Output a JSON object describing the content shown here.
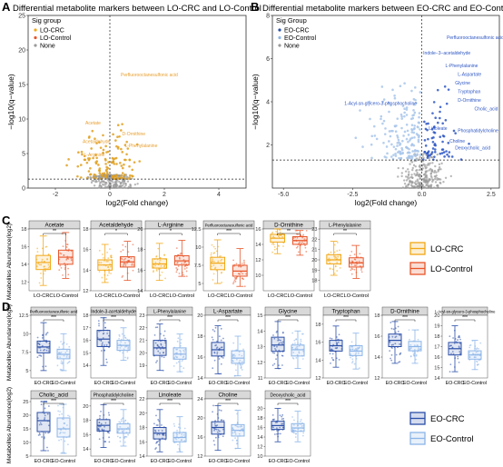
{
  "panel_labels": {
    "A": "A",
    "B": "B",
    "C": "C",
    "D": "D"
  },
  "colors": {
    "lo_crc": "#f2a817",
    "lo_control": "#e8562a",
    "eo_crc": "#2b4fa8",
    "eo_control": "#8cb5e8",
    "none": "#9a9a9a",
    "lo_sig_point": "#e0a020",
    "eo_sig_point": "#2d56c4",
    "eo_light_point": "#a8c6ea",
    "strip_bg": "#d9d9d9"
  },
  "chart_data": [
    {
      "type": "scatter",
      "id": "A",
      "title": "Differential metabolite markers between LO-CRC and LO-Control",
      "xlabel": "log2(Fold change)",
      "ylabel": "−log10(q−value)",
      "xlim": [
        -3,
        5
      ],
      "ylim": [
        0,
        25
      ],
      "xticks": [
        -2,
        0,
        2,
        4
      ],
      "yticks": [
        0,
        5,
        10,
        15,
        20,
        25
      ],
      "threshold_y": 1.3,
      "threshold_x": 0,
      "legend": {
        "title": "Sig group",
        "items": [
          "LO-CRC",
          "LO-Control",
          "None"
        ]
      },
      "labels": [
        {
          "text": "Perfluorooctanesulfonic acid",
          "x": 0.4,
          "y": 16.2
        },
        {
          "text": "Acetate",
          "x": -0.9,
          "y": 9.2
        },
        {
          "text": "D-Ornithine",
          "x": 0.45,
          "y": 7.6
        },
        {
          "text": "Acetaldehyde",
          "x": -1.0,
          "y": 6.5
        },
        {
          "text": "L-Phenylalanine",
          "x": 0.55,
          "y": 5.9
        },
        {
          "text": "L-Arginine",
          "x": -0.95,
          "y": 4.6
        }
      ]
    },
    {
      "type": "scatter",
      "id": "B",
      "title": "Differential metabolite markers between EO-CRC and EO-Control",
      "xlabel": "log2(Fold change)",
      "ylabel": "−log10(q−value)",
      "xlim": [
        -5.4,
        2.8
      ],
      "ylim": [
        0,
        8
      ],
      "xticks": [
        -5.0,
        -2.5,
        0.0,
        2.5
      ],
      "yticks": [
        2,
        4,
        6,
        8
      ],
      "threshold_y": 1.3,
      "threshold_x": 0,
      "legend": {
        "title": "Sig Group",
        "items": [
          "EO-CRC",
          "EO-Control",
          "None"
        ]
      },
      "labels": [
        {
          "text": "Perfluorooctanesulfonic acid",
          "x": 0.9,
          "y": 6.9
        },
        {
          "text": "Indole−3−acetaldehyde",
          "x": 0.05,
          "y": 6.2
        },
        {
          "text": "L-Phenylalanine",
          "x": 0.85,
          "y": 5.6
        },
        {
          "text": "L-Aspartate",
          "x": 1.3,
          "y": 5.2
        },
        {
          "text": "Glycine",
          "x": 1.2,
          "y": 4.8
        },
        {
          "text": "Tryptophan",
          "x": 1.3,
          "y": 4.4
        },
        {
          "text": "D-Ornithine",
          "x": 1.3,
          "y": 4.0
        },
        {
          "text": "1-Acyl-sn-glycero-3-phosphocholine",
          "x": -2.8,
          "y": 3.85
        },
        {
          "text": "Cholic_acid",
          "x": 1.9,
          "y": 3.6
        },
        {
          "text": "Linoleate",
          "x": 0.25,
          "y": 2.7
        },
        {
          "text": "Phosphatidylcholine",
          "x": 1.3,
          "y": 2.6
        },
        {
          "text": "Choline",
          "x": 1.0,
          "y": 2.1
        },
        {
          "text": "Deoxycholic_acid",
          "x": 1.2,
          "y": 1.8
        }
      ]
    },
    {
      "type": "boxplot",
      "id": "C",
      "ylabel": "Metabolites Abundance(log2)",
      "groups": [
        "LO-CRC",
        "LO-Control"
      ],
      "legend": [
        "LO-CRC",
        "LO-Control"
      ],
      "facets": [
        {
          "name": "Acetate",
          "ylim": [
            11,
            18
          ],
          "yticks": [
            12,
            14,
            16,
            18
          ],
          "sig": "**",
          "boxes": [
            {
              "q1": 13.4,
              "med": 14.2,
              "q3": 15.0,
              "lo": 11.6,
              "hi": 17.2
            },
            {
              "q1": 14.0,
              "med": 14.8,
              "q3": 15.6,
              "lo": 12.4,
              "hi": 17.6
            }
          ]
        },
        {
          "name": "Acetaldehyde",
          "ylim": [
            12,
            18
          ],
          "yticks": [
            12,
            14,
            16,
            18
          ],
          "sig": "*",
          "boxes": [
            {
              "q1": 14.0,
              "med": 14.5,
              "q3": 15.0,
              "lo": 12.8,
              "hi": 16.5
            },
            {
              "q1": 14.3,
              "med": 14.8,
              "q3": 15.3,
              "lo": 13.0,
              "hi": 16.8
            }
          ]
        },
        {
          "name": "L-Arginine",
          "ylim": [
            14,
            20
          ],
          "yticks": [
            14,
            16,
            18,
            20
          ],
          "sig": "*",
          "boxes": [
            {
              "q1": 16.2,
              "med": 16.6,
              "q3": 17.1,
              "lo": 15.0,
              "hi": 18.6
            },
            {
              "q1": 16.5,
              "med": 16.9,
              "q3": 17.4,
              "lo": 15.4,
              "hi": 18.9
            }
          ]
        },
        {
          "name": "Perfluorooctanesulfonic acid",
          "ylim": [
            4,
            12.5
          ],
          "yticks": [
            5.0,
            7.5,
            10.0,
            12.5
          ],
          "sig": "***",
          "boxes": [
            {
              "q1": 6.9,
              "med": 7.8,
              "q3": 8.6,
              "lo": 5.0,
              "hi": 11.0
            },
            {
              "q1": 6.0,
              "med": 6.7,
              "q3": 7.5,
              "lo": 4.6,
              "hi": 9.8
            }
          ]
        },
        {
          "name": "D-Ornithine",
          "ylim": [
            8,
            16
          ],
          "yticks": [
            10,
            12,
            14,
            16
          ],
          "sig": "**",
          "boxes": [
            {
              "q1": 14.3,
              "med": 14.8,
              "q3": 15.3,
              "lo": 12.8,
              "hi": 16.0
            },
            {
              "q1": 14.0,
              "med": 14.5,
              "q3": 15.0,
              "lo": 12.6,
              "hi": 15.8
            }
          ]
        },
        {
          "name": "L-Phenylalanine",
          "ylim": [
            17,
            23
          ],
          "yticks": [
            18,
            19,
            20,
            21,
            22,
            23
          ],
          "sig": "**",
          "boxes": [
            {
              "q1": 19.6,
              "med": 20.0,
              "q3": 20.5,
              "lo": 18.5,
              "hi": 21.8
            },
            {
              "q1": 19.3,
              "med": 19.7,
              "q3": 20.2,
              "lo": 18.2,
              "hi": 21.4
            }
          ]
        }
      ]
    },
    {
      "type": "boxplot",
      "id": "D",
      "ylabel": "Metabolites Abundance(log2)",
      "groups": [
        "EO-CRC",
        "EO-Control"
      ],
      "legend": [
        "EO-CRC",
        "EO-Control"
      ],
      "facets": [
        {
          "name": "Perfluorooctanesulfonic acid",
          "ylim": [
            4,
            12.5
          ],
          "yticks": [
            5.0,
            7.5,
            10.0,
            12.5
          ],
          "sig": "***",
          "boxes": [
            {
              "q1": 7.4,
              "med": 8.2,
              "q3": 9.0,
              "lo": 5.0,
              "hi": 11.5
            },
            {
              "q1": 6.6,
              "med": 7.2,
              "q3": 7.9,
              "lo": 5.0,
              "hi": 10.0
            }
          ]
        },
        {
          "name": "Indole-3-acetaldehyde",
          "ylim": [
            13,
            18
          ],
          "yticks": [
            14,
            15,
            16,
            17,
            18
          ],
          "sig": "***",
          "boxes": [
            {
              "q1": 15.5,
              "med": 16.1,
              "q3": 16.8,
              "lo": 14.0,
              "hi": 17.8
            },
            {
              "q1": 15.2,
              "med": 15.6,
              "q3": 16.0,
              "lo": 14.4,
              "hi": 17.0
            }
          ]
        },
        {
          "name": "L-Phenylalanine",
          "ylim": [
            18,
            23
          ],
          "yticks": [
            19,
            20,
            21,
            22,
            23
          ],
          "sig": "***",
          "boxes": [
            {
              "q1": 19.8,
              "med": 20.4,
              "q3": 21.0,
              "lo": 18.6,
              "hi": 22.3
            },
            {
              "q1": 19.5,
              "med": 19.9,
              "q3": 20.4,
              "lo": 18.5,
              "hi": 21.5
            }
          ]
        },
        {
          "name": "L-Aspartate",
          "ylim": [
            14,
            20
          ],
          "yticks": [
            14,
            16,
            18,
            20
          ],
          "sig": "***",
          "boxes": [
            {
              "q1": 16.1,
              "med": 16.7,
              "q3": 17.4,
              "lo": 14.4,
              "hi": 19.0
            },
            {
              "q1": 15.4,
              "med": 15.9,
              "q3": 16.6,
              "lo": 14.2,
              "hi": 18.0
            }
          ]
        },
        {
          "name": "Glycine",
          "ylim": [
            11,
            15
          ],
          "yticks": [
            11,
            12,
            13,
            14,
            15
          ],
          "sig": "***",
          "boxes": [
            {
              "q1": 12.7,
              "med": 13.1,
              "q3": 13.6,
              "lo": 11.6,
              "hi": 14.6
            },
            {
              "q1": 12.4,
              "med": 12.8,
              "q3": 13.1,
              "lo": 11.6,
              "hi": 14.0
            }
          ]
        },
        {
          "name": "Tryptophan",
          "ylim": [
            12,
            19
          ],
          "yticks": [
            12,
            14,
            16,
            18
          ],
          "sig": "***",
          "boxes": [
            {
              "q1": 15.0,
              "med": 15.6,
              "q3": 16.2,
              "lo": 13.2,
              "hi": 17.8
            },
            {
              "q1": 14.5,
              "med": 15.0,
              "q3": 15.6,
              "lo": 13.0,
              "hi": 17.0
            }
          ]
        },
        {
          "name": "D-Ornithine",
          "ylim": [
            12,
            18
          ],
          "yticks": [
            12,
            14,
            16,
            18
          ],
          "sig": "***",
          "boxes": [
            {
              "q1": 15.0,
              "med": 15.6,
              "q3": 16.2,
              "lo": 13.4,
              "hi": 17.4
            },
            {
              "q1": 14.6,
              "med": 15.0,
              "q3": 15.5,
              "lo": 13.4,
              "hi": 16.6
            }
          ]
        },
        {
          "name": "1-Acyl-sn-glycero-3-phosphocholine",
          "ylim": [
            14,
            20
          ],
          "yticks": [
            14,
            15,
            16,
            17,
            18,
            19,
            20
          ],
          "sig": "***",
          "boxes": [
            {
              "q1": 16.2,
              "med": 16.8,
              "q3": 17.4,
              "lo": 14.6,
              "hi": 19.0
            },
            {
              "q1": 15.8,
              "med": 16.2,
              "q3": 16.6,
              "lo": 14.8,
              "hi": 17.6
            }
          ]
        },
        {
          "name": "Cholic_acid",
          "ylim": [
            5,
            26
          ],
          "yticks": [
            5,
            10,
            15,
            20,
            25
          ],
          "sig": "***",
          "boxes": [
            {
              "q1": 14.0,
              "med": 18.0,
              "q3": 21.0,
              "lo": 7.0,
              "hi": 25.0
            },
            {
              "q1": 12.0,
              "med": 15.0,
              "q3": 19.0,
              "lo": 6.0,
              "hi": 24.0
            }
          ]
        },
        {
          "name": "Phosphatidylcholine",
          "ylim": [
            13,
            21
          ],
          "yticks": [
            14,
            16,
            18,
            20
          ],
          "sig": "***",
          "boxes": [
            {
              "q1": 16.5,
              "med": 17.3,
              "q3": 18.1,
              "lo": 14.2,
              "hi": 20.2
            },
            {
              "q1": 16.2,
              "med": 16.8,
              "q3": 17.5,
              "lo": 14.4,
              "hi": 19.5
            }
          ]
        },
        {
          "name": "Linoleate",
          "ylim": [
            14,
            22
          ],
          "yticks": [
            14,
            16,
            18,
            20,
            22
          ],
          "sig": "***",
          "boxes": [
            {
              "q1": 16.4,
              "med": 17.2,
              "q3": 18.0,
              "lo": 14.6,
              "hi": 20.5
            },
            {
              "q1": 16.0,
              "med": 16.6,
              "q3": 17.3,
              "lo": 14.6,
              "hi": 19.5
            }
          ]
        },
        {
          "name": "Choline",
          "ylim": [
            12,
            24
          ],
          "yticks": [
            12,
            16,
            20,
            24
          ],
          "sig": "***",
          "boxes": [
            {
              "q1": 16.6,
              "med": 18.0,
              "q3": 19.2,
              "lo": 13.2,
              "hi": 22.6
            },
            {
              "q1": 16.2,
              "med": 17.4,
              "q3": 18.6,
              "lo": 13.6,
              "hi": 21.6
            }
          ]
        },
        {
          "name": "Deoxycholic_acid",
          "ylim": [
            10,
            22
          ],
          "yticks": [
            10,
            12,
            14,
            16,
            18,
            20
          ],
          "sig": "***",
          "boxes": [
            {
              "q1": 15.6,
              "med": 16.4,
              "q3": 17.3,
              "lo": 13.0,
              "hi": 20.0
            },
            {
              "q1": 15.2,
              "med": 15.9,
              "q3": 16.8,
              "lo": 13.0,
              "hi": 19.4
            }
          ]
        }
      ]
    }
  ]
}
